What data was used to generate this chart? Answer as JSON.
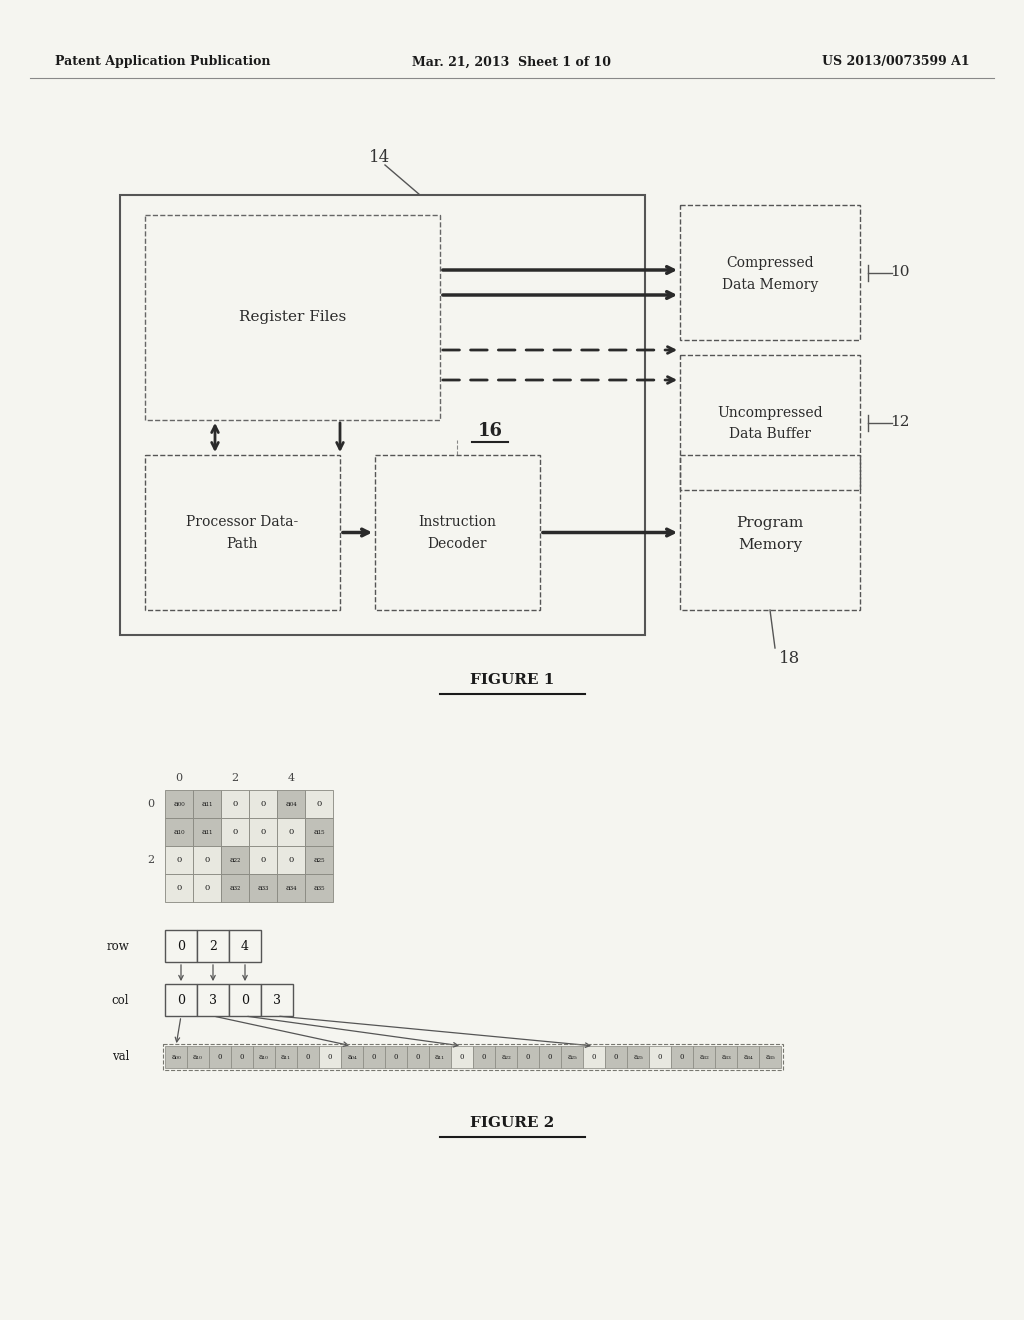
{
  "bg_color": "#f5f5f0",
  "header_left": "Patent Application Publication",
  "header_mid": "Mar. 21, 2013  Sheet 1 of 10",
  "header_right": "US 2013/0073599 A1",
  "fig1_label": "FIGURE 1",
  "fig2_label": "FIGURE 2",
  "label_14": "14",
  "label_18": "18",
  "label_16": "16",
  "label_10": "10",
  "label_12": "12"
}
